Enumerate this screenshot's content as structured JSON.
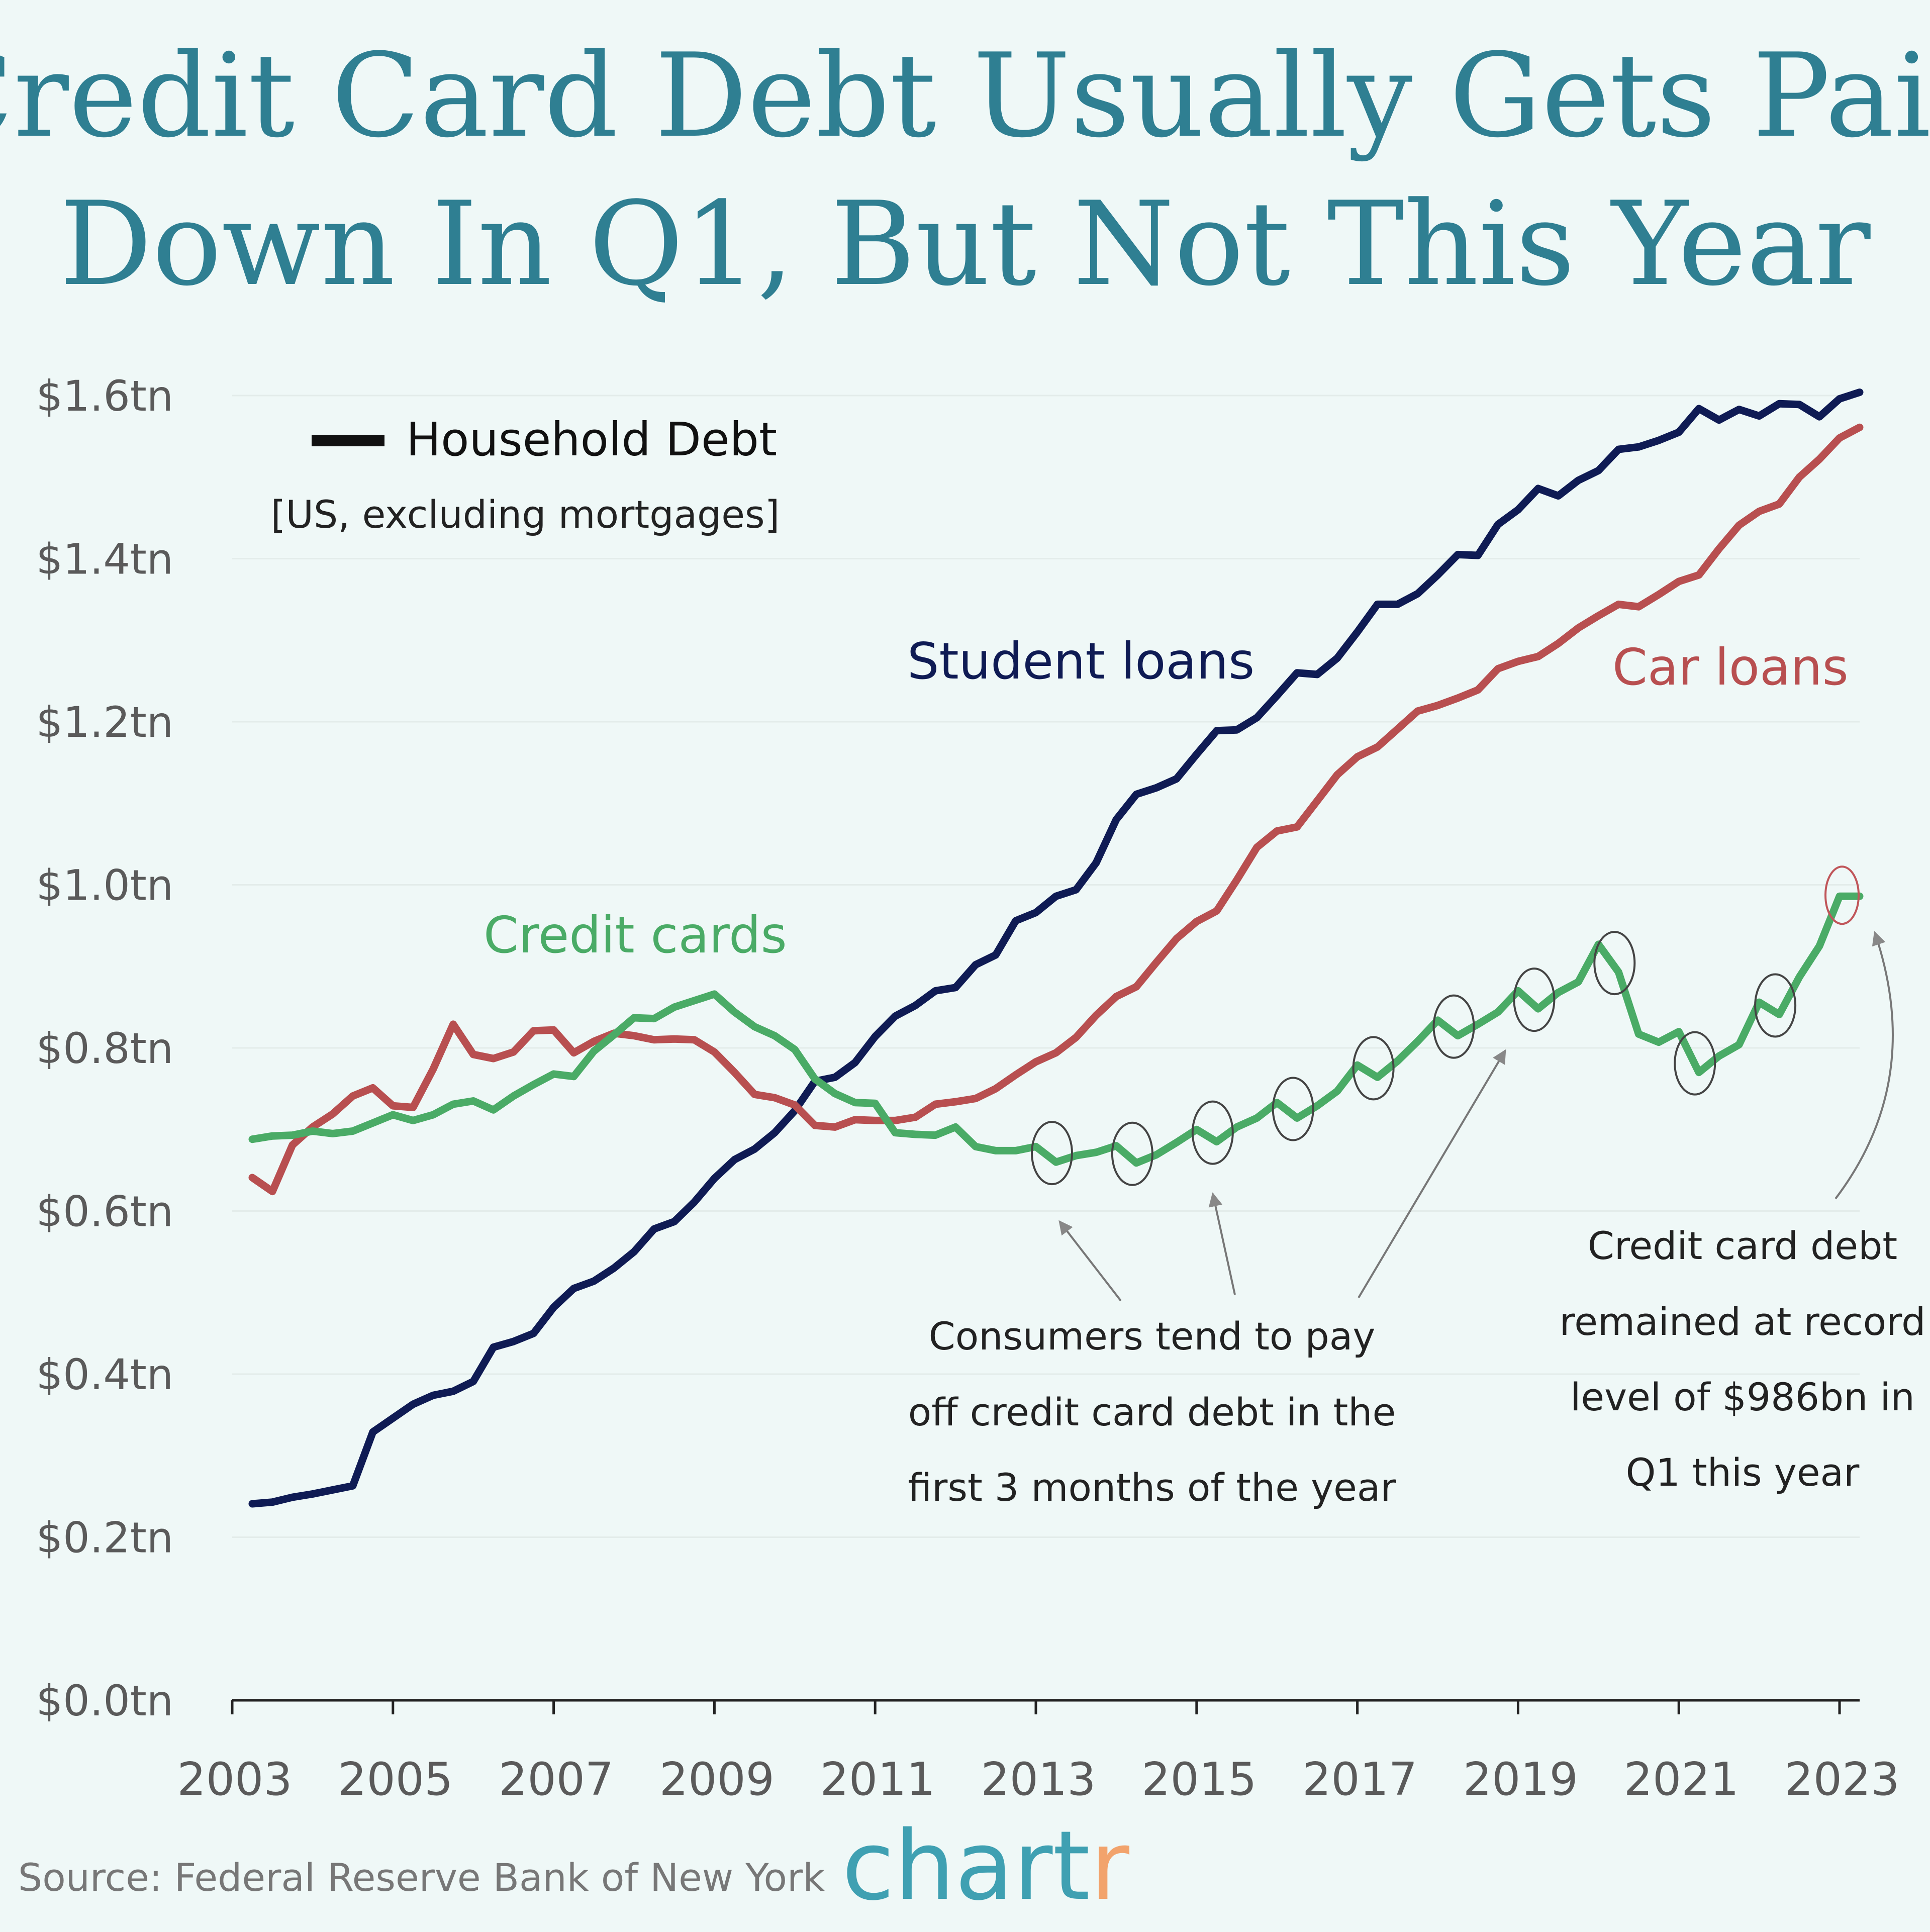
{
  "title_lines": [
    "Credit Card Debt Usually Gets Paid",
    "Down In Q1, But Not This Year"
  ],
  "legend": {
    "title": "Household Debt",
    "subtitle": "[US, excluding mortgages]"
  },
  "source": "Source: Federal Reserve Bank of New York",
  "brand": {
    "main": "chart",
    "accent": "r"
  },
  "annotations": {
    "pay_off": [
      "Consumers tend to pay",
      "off credit card debt in the",
      "first 3 months of the year"
    ],
    "record": [
      "Credit card debt",
      "remained at record",
      "level of $986bn in",
      "Q1 this year"
    ]
  },
  "colors": {
    "background": "#eff8f7",
    "title": "#2f7f92",
    "student_loans": "#0f1b54",
    "car_loans": "#b84f50",
    "credit_cards": "#4aab66",
    "brand": "#3fa0b2",
    "brand_accent": "#f2a36c"
  },
  "chart_data": {
    "type": "line",
    "ylim": [
      0.0,
      1.6
    ],
    "xlim": [
      2003.0,
      2023.25
    ],
    "yticks": [
      {
        "value": 0.0,
        "label": "$0.0tn"
      },
      {
        "value": 0.2,
        "label": "$0.2tn"
      },
      {
        "value": 0.4,
        "label": "$0.4tn"
      },
      {
        "value": 0.6,
        "label": "$0.6tn"
      },
      {
        "value": 0.8,
        "label": "$0.8tn"
      },
      {
        "value": 1.0,
        "label": "$1.0tn"
      },
      {
        "value": 1.2,
        "label": "$1.2tn"
      },
      {
        "value": 1.4,
        "label": "$1.4tn"
      },
      {
        "value": 1.6,
        "label": "$1.6tn"
      }
    ],
    "xticks": [
      "2003",
      "2005",
      "2007",
      "2009",
      "2011",
      "2013",
      "2015",
      "2017",
      "2019",
      "2021",
      "2023"
    ],
    "grid": true,
    "legend_position": "top-left",
    "series": [
      {
        "name": "Student loans",
        "color": "#0f1b54",
        "points": [
          [
            2003.25,
            0.241
          ],
          [
            2003.5,
            0.243
          ],
          [
            2003.75,
            0.249
          ],
          [
            2004.0,
            0.253
          ],
          [
            2004.25,
            0.258
          ],
          [
            2004.5,
            0.263
          ],
          [
            2004.75,
            0.329
          ],
          [
            2005.0,
            0.346
          ],
          [
            2005.25,
            0.363
          ],
          [
            2005.5,
            0.374
          ],
          [
            2005.75,
            0.379
          ],
          [
            2006.0,
            0.391
          ],
          [
            2006.25,
            0.433
          ],
          [
            2006.5,
            0.44
          ],
          [
            2006.75,
            0.45
          ],
          [
            2007.0,
            0.482
          ],
          [
            2007.25,
            0.505
          ],
          [
            2007.5,
            0.514
          ],
          [
            2007.75,
            0.53
          ],
          [
            2008.0,
            0.55
          ],
          [
            2008.25,
            0.578
          ],
          [
            2008.5,
            0.587
          ],
          [
            2008.75,
            0.611
          ],
          [
            2009.0,
            0.64
          ],
          [
            2009.25,
            0.663
          ],
          [
            2009.5,
            0.676
          ],
          [
            2009.75,
            0.696
          ],
          [
            2010.0,
            0.723
          ],
          [
            2010.25,
            0.759
          ],
          [
            2010.5,
            0.764
          ],
          [
            2010.75,
            0.782
          ],
          [
            2011.0,
            0.814
          ],
          [
            2011.25,
            0.839
          ],
          [
            2011.5,
            0.852
          ],
          [
            2011.75,
            0.87
          ],
          [
            2012.0,
            0.874
          ],
          [
            2012.25,
            0.902
          ],
          [
            2012.5,
            0.914
          ],
          [
            2012.75,
            0.956
          ],
          [
            2013.0,
            0.966
          ],
          [
            2013.25,
            0.986
          ],
          [
            2013.5,
            0.994
          ],
          [
            2013.75,
            1.027
          ],
          [
            2014.0,
            1.08
          ],
          [
            2014.25,
            1.111
          ],
          [
            2014.5,
            1.119
          ],
          [
            2014.75,
            1.13
          ],
          [
            2015.0,
            1.16
          ],
          [
            2015.25,
            1.189
          ],
          [
            2015.5,
            1.19
          ],
          [
            2015.75,
            1.205
          ],
          [
            2016.0,
            1.232
          ],
          [
            2016.25,
            1.26
          ],
          [
            2016.5,
            1.258
          ],
          [
            2016.75,
            1.278
          ],
          [
            2017.0,
            1.31
          ],
          [
            2017.25,
            1.344
          ],
          [
            2017.5,
            1.344
          ],
          [
            2017.75,
            1.357
          ],
          [
            2018.0,
            1.38
          ],
          [
            2018.25,
            1.405
          ],
          [
            2018.5,
            1.404
          ],
          [
            2018.75,
            1.442
          ],
          [
            2019.0,
            1.46
          ],
          [
            2019.25,
            1.486
          ],
          [
            2019.5,
            1.477
          ],
          [
            2019.75,
            1.496
          ],
          [
            2020.0,
            1.508
          ],
          [
            2020.25,
            1.534
          ],
          [
            2020.5,
            1.537
          ],
          [
            2020.75,
            1.545
          ],
          [
            2021.0,
            1.555
          ],
          [
            2021.25,
            1.584
          ],
          [
            2021.5,
            1.57
          ],
          [
            2021.75,
            1.583
          ],
          [
            2022.0,
            1.575
          ],
          [
            2022.25,
            1.59
          ],
          [
            2022.5,
            1.589
          ],
          [
            2022.75,
            1.574
          ],
          [
            2023.0,
            1.596
          ],
          [
            2023.25,
            1.604
          ]
        ]
      },
      {
        "name": "Car loans",
        "color": "#b84f50",
        "points": [
          [
            2003.25,
            0.641
          ],
          [
            2003.5,
            0.624
          ],
          [
            2003.75,
            0.681
          ],
          [
            2004.0,
            0.703
          ],
          [
            2004.25,
            0.719
          ],
          [
            2004.5,
            0.741
          ],
          [
            2004.75,
            0.751
          ],
          [
            2005.0,
            0.729
          ],
          [
            2005.25,
            0.727
          ],
          [
            2005.5,
            0.774
          ],
          [
            2005.75,
            0.829
          ],
          [
            2006.0,
            0.792
          ],
          [
            2006.25,
            0.787
          ],
          [
            2006.5,
            0.795
          ],
          [
            2006.75,
            0.821
          ],
          [
            2007.0,
            0.822
          ],
          [
            2007.25,
            0.794
          ],
          [
            2007.5,
            0.808
          ],
          [
            2007.75,
            0.818
          ],
          [
            2008.0,
            0.815
          ],
          [
            2008.25,
            0.81
          ],
          [
            2008.5,
            0.811
          ],
          [
            2008.75,
            0.81
          ],
          [
            2009.0,
            0.795
          ],
          [
            2009.25,
            0.77
          ],
          [
            2009.5,
            0.743
          ],
          [
            2009.75,
            0.739
          ],
          [
            2010.0,
            0.73
          ],
          [
            2010.25,
            0.705
          ],
          [
            2010.5,
            0.703
          ],
          [
            2010.75,
            0.712
          ],
          [
            2011.0,
            0.711
          ],
          [
            2011.25,
            0.711
          ],
          [
            2011.5,
            0.715
          ],
          [
            2011.75,
            0.731
          ],
          [
            2012.0,
            0.734
          ],
          [
            2012.25,
            0.738
          ],
          [
            2012.5,
            0.75
          ],
          [
            2012.75,
            0.767
          ],
          [
            2013.0,
            0.783
          ],
          [
            2013.25,
            0.794
          ],
          [
            2013.5,
            0.813
          ],
          [
            2013.75,
            0.84
          ],
          [
            2014.0,
            0.863
          ],
          [
            2014.25,
            0.875
          ],
          [
            2014.5,
            0.905
          ],
          [
            2014.75,
            0.934
          ],
          [
            2015.0,
            0.955
          ],
          [
            2015.25,
            0.968
          ],
          [
            2015.5,
            1.006
          ],
          [
            2015.75,
            1.046
          ],
          [
            2016.0,
            1.066
          ],
          [
            2016.25,
            1.071
          ],
          [
            2016.5,
            1.103
          ],
          [
            2016.75,
            1.135
          ],
          [
            2017.0,
            1.157
          ],
          [
            2017.25,
            1.169
          ],
          [
            2017.5,
            1.191
          ],
          [
            2017.75,
            1.213
          ],
          [
            2018.0,
            1.22
          ],
          [
            2018.25,
            1.229
          ],
          [
            2018.5,
            1.239
          ],
          [
            2018.75,
            1.265
          ],
          [
            2019.0,
            1.274
          ],
          [
            2019.25,
            1.28
          ],
          [
            2019.5,
            1.296
          ],
          [
            2019.75,
            1.315
          ],
          [
            2020.0,
            1.33
          ],
          [
            2020.25,
            1.344
          ],
          [
            2020.5,
            1.341
          ],
          [
            2020.75,
            1.356
          ],
          [
            2021.0,
            1.372
          ],
          [
            2021.25,
            1.38
          ],
          [
            2021.5,
            1.412
          ],
          [
            2021.75,
            1.441
          ],
          [
            2022.0,
            1.458
          ],
          [
            2022.25,
            1.467
          ],
          [
            2022.5,
            1.5
          ],
          [
            2022.75,
            1.522
          ],
          [
            2023.0,
            1.548
          ],
          [
            2023.25,
            1.561
          ]
        ]
      },
      {
        "name": "Credit cards",
        "color": "#4aab66",
        "points": [
          [
            2003.25,
            0.688
          ],
          [
            2003.5,
            0.692
          ],
          [
            2003.75,
            0.693
          ],
          [
            2004.0,
            0.698
          ],
          [
            2004.25,
            0.695
          ],
          [
            2004.5,
            0.698
          ],
          [
            2004.75,
            0.708
          ],
          [
            2005.0,
            0.718
          ],
          [
            2005.25,
            0.711
          ],
          [
            2005.5,
            0.718
          ],
          [
            2005.75,
            0.731
          ],
          [
            2006.0,
            0.735
          ],
          [
            2006.25,
            0.724
          ],
          [
            2006.5,
            0.741
          ],
          [
            2006.75,
            0.755
          ],
          [
            2007.0,
            0.768
          ],
          [
            2007.25,
            0.765
          ],
          [
            2007.5,
            0.796
          ],
          [
            2007.75,
            0.816
          ],
          [
            2008.0,
            0.837
          ],
          [
            2008.25,
            0.836
          ],
          [
            2008.5,
            0.85
          ],
          [
            2008.75,
            0.858
          ],
          [
            2009.0,
            0.866
          ],
          [
            2009.25,
            0.844
          ],
          [
            2009.5,
            0.826
          ],
          [
            2009.75,
            0.815
          ],
          [
            2010.0,
            0.798
          ],
          [
            2010.25,
            0.762
          ],
          [
            2010.5,
            0.744
          ],
          [
            2010.75,
            0.733
          ],
          [
            2011.0,
            0.732
          ],
          [
            2011.25,
            0.696
          ],
          [
            2011.5,
            0.694
          ],
          [
            2011.75,
            0.693
          ],
          [
            2012.0,
            0.703
          ],
          [
            2012.25,
            0.679
          ],
          [
            2012.5,
            0.674
          ],
          [
            2012.75,
            0.674
          ],
          [
            2013.0,
            0.679
          ],
          [
            2013.25,
            0.66
          ],
          [
            2013.5,
            0.668
          ],
          [
            2013.75,
            0.672
          ],
          [
            2014.0,
            0.68
          ],
          [
            2014.25,
            0.659
          ],
          [
            2014.5,
            0.669
          ],
          [
            2014.75,
            0.684
          ],
          [
            2015.0,
            0.7
          ],
          [
            2015.25,
            0.685
          ],
          [
            2015.5,
            0.703
          ],
          [
            2015.75,
            0.714
          ],
          [
            2016.0,
            0.733
          ],
          [
            2016.25,
            0.714
          ],
          [
            2016.5,
            0.729
          ],
          [
            2016.75,
            0.747
          ],
          [
            2017.0,
            0.779
          ],
          [
            2017.25,
            0.764
          ],
          [
            2017.5,
            0.784
          ],
          [
            2017.75,
            0.808
          ],
          [
            2018.0,
            0.834
          ],
          [
            2018.25,
            0.815
          ],
          [
            2018.5,
            0.829
          ],
          [
            2018.75,
            0.844
          ],
          [
            2019.0,
            0.87
          ],
          [
            2019.25,
            0.848
          ],
          [
            2019.5,
            0.868
          ],
          [
            2019.75,
            0.881
          ],
          [
            2020.0,
            0.927
          ],
          [
            2020.25,
            0.893
          ],
          [
            2020.5,
            0.817
          ],
          [
            2020.75,
            0.807
          ],
          [
            2021.0,
            0.82
          ],
          [
            2021.25,
            0.77
          ],
          [
            2021.5,
            0.79
          ],
          [
            2021.75,
            0.804
          ],
          [
            2022.0,
            0.856
          ],
          [
            2022.25,
            0.841
          ],
          [
            2022.5,
            0.887
          ],
          [
            2022.75,
            0.925
          ],
          [
            2023.0,
            0.986
          ],
          [
            2023.25,
            0.986
          ]
        ]
      }
    ],
    "circled_points": [
      2013.25,
      2014.25,
      2015.25,
      2016.25,
      2017.25,
      2018.25,
      2019.25,
      2020.25,
      2021.25,
      2022.25
    ],
    "highlighted_point": 2023.0
  }
}
